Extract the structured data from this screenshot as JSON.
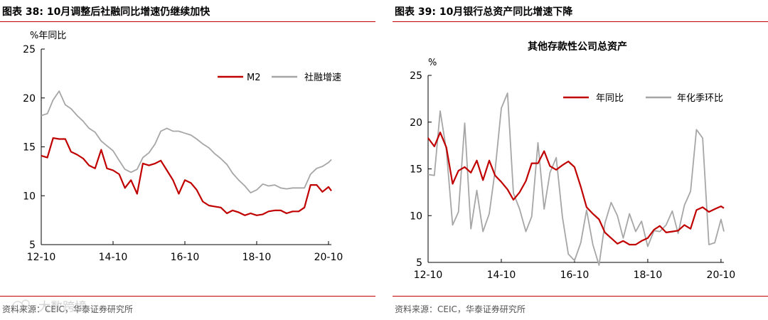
{
  "colors": {
    "accent_red": "#c00000",
    "gray_series": "#a6a6a6"
  },
  "panels": [
    {
      "header": "图表 38:   10月调整后社融同比增速仍继续加快",
      "source": "资料来源：CEIC，华泰证券研究所",
      "watermark": "大数跨境"
    },
    {
      "header": "图表 39:   10月银行总资产同比增速下降",
      "source": "资料来源：CEIC，华泰证券研究所"
    }
  ],
  "chart_data": [
    {
      "type": "line",
      "title": "",
      "unit_label": "%年同比",
      "ylim": [
        5,
        25
      ],
      "yticks": [
        5,
        10,
        15,
        20,
        25
      ],
      "xlim": [
        2012.75,
        2020.83
      ],
      "xticks": [
        {
          "value": 2012.75,
          "label": "12-10"
        },
        {
          "value": 2014.75,
          "label": "14-10"
        },
        {
          "value": 2016.75,
          "label": "16-10"
        },
        {
          "value": 2018.75,
          "label": "18-10"
        },
        {
          "value": 2020.75,
          "label": "20-10"
        }
      ],
      "grid": false,
      "legend_position": "top-right",
      "series": [
        {
          "name": "M2",
          "color": "#c00000",
          "x": [
            2012.75,
            2012.92,
            2013.08,
            2013.25,
            2013.42,
            2013.58,
            2013.75,
            2013.92,
            2014.08,
            2014.25,
            2014.42,
            2014.58,
            2014.75,
            2014.92,
            2015.08,
            2015.25,
            2015.42,
            2015.58,
            2015.75,
            2015.92,
            2016.08,
            2016.25,
            2016.42,
            2016.58,
            2016.75,
            2016.92,
            2017.08,
            2017.25,
            2017.42,
            2017.58,
            2017.75,
            2017.92,
            2018.08,
            2018.25,
            2018.42,
            2018.58,
            2018.75,
            2018.92,
            2019.08,
            2019.25,
            2019.42,
            2019.58,
            2019.75,
            2019.92,
            2020.08,
            2020.25,
            2020.42,
            2020.58,
            2020.75,
            2020.83
          ],
          "values": [
            14.1,
            13.9,
            15.9,
            15.8,
            15.8,
            14.5,
            14.2,
            13.8,
            13.1,
            12.8,
            14.7,
            12.8,
            12.6,
            12.2,
            10.8,
            11.6,
            10.2,
            13.3,
            13.1,
            13.3,
            13.6,
            12.6,
            11.6,
            10.2,
            11.6,
            11.3,
            10.6,
            9.4,
            9.0,
            8.9,
            8.8,
            8.2,
            8.5,
            8.3,
            8.0,
            8.2,
            8.0,
            8.1,
            8.4,
            8.5,
            8.5,
            8.2,
            8.4,
            8.4,
            8.8,
            11.1,
            11.1,
            10.4,
            10.9,
            10.5
          ]
        },
        {
          "name": "社融增速",
          "color": "#a6a6a6",
          "x": [
            2012.75,
            2012.92,
            2013.08,
            2013.25,
            2013.42,
            2013.58,
            2013.75,
            2013.92,
            2014.08,
            2014.25,
            2014.42,
            2014.58,
            2014.75,
            2014.92,
            2015.08,
            2015.25,
            2015.42,
            2015.58,
            2015.75,
            2015.92,
            2016.08,
            2016.25,
            2016.42,
            2016.58,
            2016.75,
            2016.92,
            2017.08,
            2017.25,
            2017.42,
            2017.58,
            2017.75,
            2017.92,
            2018.08,
            2018.25,
            2018.42,
            2018.58,
            2018.75,
            2018.92,
            2019.08,
            2019.25,
            2019.42,
            2019.58,
            2019.75,
            2019.92,
            2020.08,
            2020.25,
            2020.42,
            2020.58,
            2020.75,
            2020.83
          ],
          "values": [
            18.2,
            18.4,
            19.8,
            20.7,
            19.3,
            18.9,
            18.2,
            17.6,
            16.9,
            16.5,
            15.6,
            15.1,
            14.6,
            13.6,
            12.7,
            12.4,
            12.7,
            13.9,
            14.4,
            15.3,
            16.6,
            16.9,
            16.6,
            16.6,
            16.4,
            16.2,
            15.8,
            15.3,
            14.9,
            14.3,
            13.8,
            13.2,
            12.3,
            11.6,
            11.0,
            10.3,
            10.6,
            11.2,
            11.0,
            11.1,
            10.8,
            10.7,
            10.8,
            10.8,
            10.8,
            12.2,
            12.8,
            13.0,
            13.4,
            13.7
          ]
        }
      ]
    },
    {
      "type": "line",
      "title": "其他存款性公司总资产",
      "unit_label": "%",
      "ylim": [
        5,
        25
      ],
      "yticks": [
        5,
        10,
        15,
        20,
        25
      ],
      "xlim": [
        2012.75,
        2020.83
      ],
      "xticks": [
        {
          "value": 2012.75,
          "label": "12-10"
        },
        {
          "value": 2014.75,
          "label": "14-10"
        },
        {
          "value": 2016.75,
          "label": "16-10"
        },
        {
          "value": 2018.75,
          "label": "18-10"
        },
        {
          "value": 2020.75,
          "label": "20-10"
        }
      ],
      "grid": false,
      "legend_position": "top",
      "series": [
        {
          "name": "年同比",
          "color": "#c00000",
          "x": [
            2012.75,
            2012.92,
            2013.08,
            2013.25,
            2013.42,
            2013.58,
            2013.75,
            2013.92,
            2014.08,
            2014.25,
            2014.42,
            2014.58,
            2014.75,
            2014.92,
            2015.08,
            2015.25,
            2015.42,
            2015.58,
            2015.75,
            2015.92,
            2016.08,
            2016.25,
            2016.42,
            2016.58,
            2016.75,
            2016.92,
            2017.08,
            2017.25,
            2017.42,
            2017.58,
            2017.75,
            2017.92,
            2018.08,
            2018.25,
            2018.42,
            2018.58,
            2018.75,
            2018.92,
            2019.08,
            2019.25,
            2019.42,
            2019.58,
            2019.75,
            2019.92,
            2020.08,
            2020.25,
            2020.42,
            2020.58,
            2020.75,
            2020.83
          ],
          "values": [
            18.3,
            17.4,
            18.9,
            17.3,
            13.4,
            14.8,
            15.2,
            14.6,
            15.9,
            13.8,
            15.9,
            14.3,
            13.6,
            12.8,
            11.7,
            12.5,
            13.7,
            15.6,
            15.6,
            16.9,
            15.3,
            14.9,
            15.4,
            15.8,
            15.2,
            13.1,
            10.9,
            10.2,
            9.6,
            8.2,
            7.6,
            7.0,
            7.3,
            6.9,
            6.9,
            7.3,
            7.6,
            8.5,
            8.9,
            8.2,
            8.3,
            8.4,
            9.0,
            8.6,
            10.6,
            10.9,
            10.4,
            10.7,
            11.0,
            10.8
          ]
        },
        {
          "name": "年化季环比",
          "color": "#a6a6a6",
          "x": [
            2012.75,
            2012.92,
            2013.08,
            2013.25,
            2013.42,
            2013.58,
            2013.75,
            2013.92,
            2014.08,
            2014.25,
            2014.42,
            2014.58,
            2014.75,
            2014.92,
            2015.08,
            2015.25,
            2015.42,
            2015.58,
            2015.75,
            2015.92,
            2016.08,
            2016.25,
            2016.42,
            2016.58,
            2016.75,
            2016.92,
            2017.08,
            2017.25,
            2017.42,
            2017.58,
            2017.75,
            2017.92,
            2018.08,
            2018.25,
            2018.42,
            2018.58,
            2018.75,
            2018.92,
            2019.08,
            2019.25,
            2019.42,
            2019.58,
            2019.75,
            2019.92,
            2020.08,
            2020.25,
            2020.42,
            2020.58,
            2020.75,
            2020.83
          ],
          "values": [
            14.4,
            14.3,
            21.2,
            17.0,
            9.0,
            10.4,
            19.9,
            8.6,
            12.7,
            8.3,
            10.2,
            14.8,
            21.5,
            23.1,
            12.4,
            10.7,
            8.3,
            9.9,
            17.8,
            10.7,
            14.6,
            16.2,
            9.8,
            5.9,
            5.2,
            7.1,
            10.6,
            6.9,
            4.7,
            9.2,
            11.4,
            10.0,
            7.6,
            10.2,
            8.3,
            9.4,
            6.7,
            8.4,
            8.3,
            9.0,
            10.5,
            8.1,
            11.1,
            12.6,
            19.2,
            18.3,
            6.9,
            7.1,
            9.6,
            8.3
          ]
        }
      ]
    }
  ]
}
